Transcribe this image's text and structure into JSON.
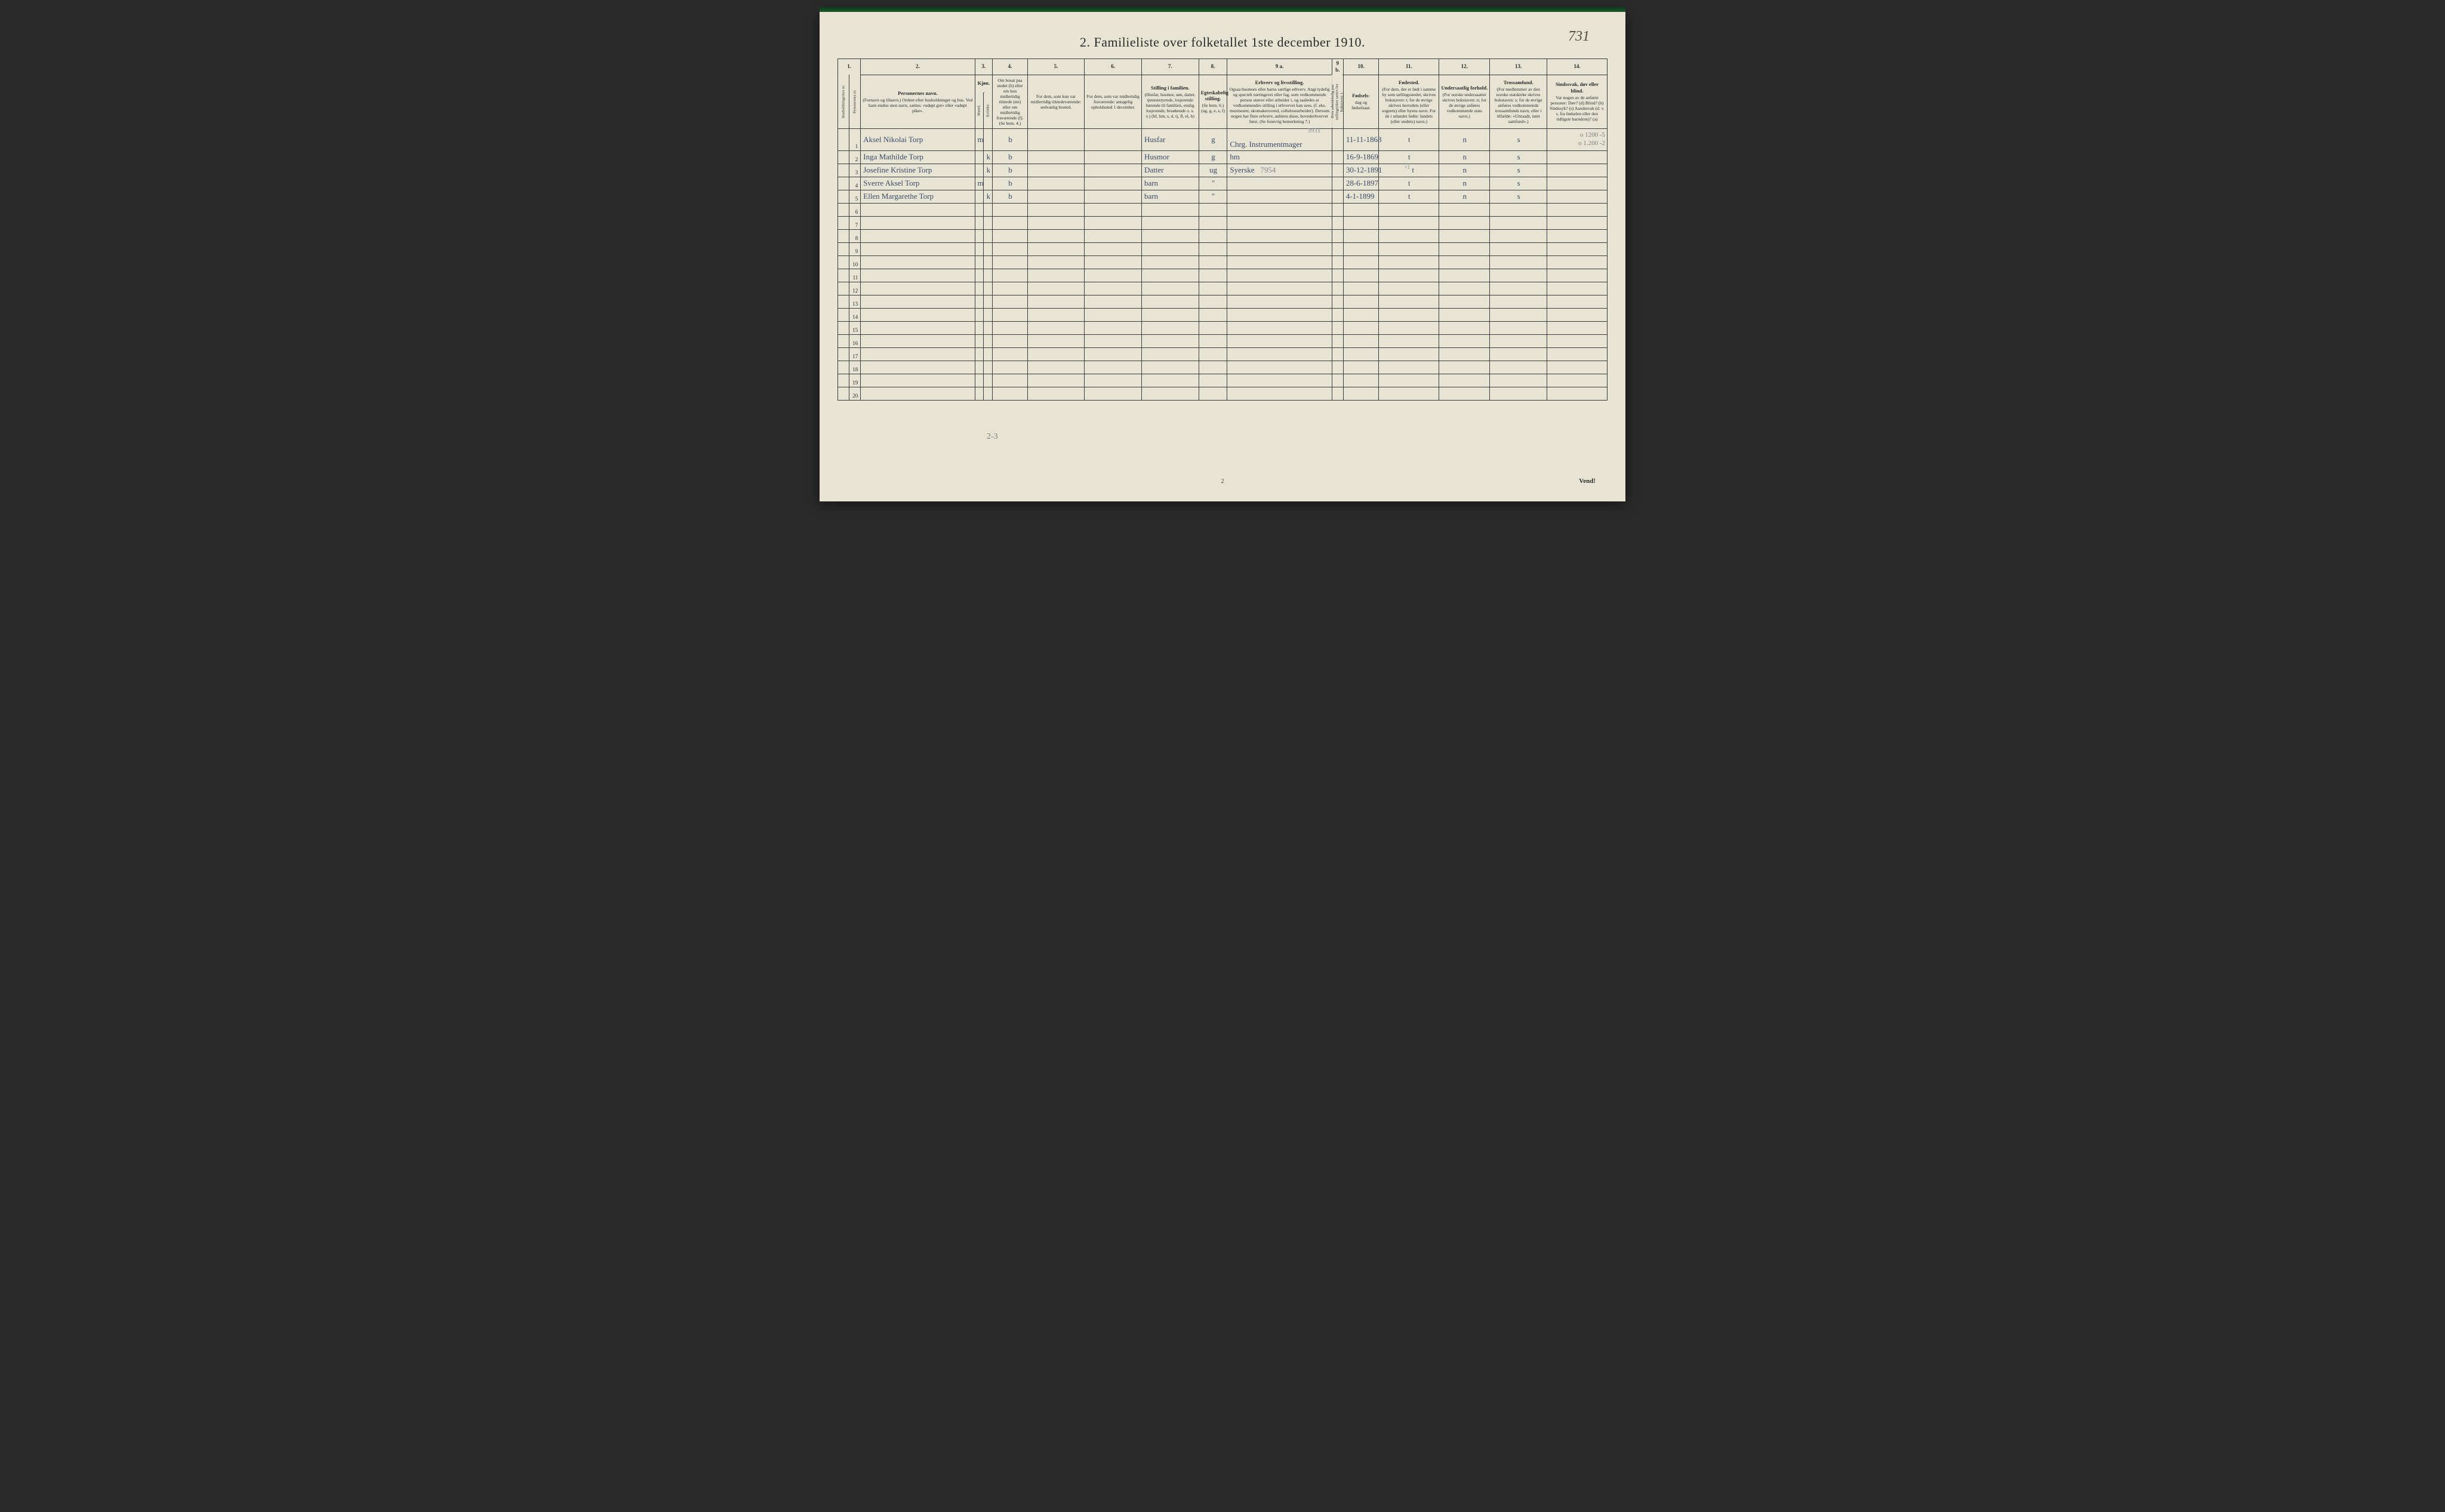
{
  "page": {
    "title": "2.  Familieliste over folketallet 1ste december 1910.",
    "topright_pagenum": "731",
    "footer_pagenum": "2",
    "vend": "Vend!",
    "tally": "2-3",
    "background_color": "#e8e4d4",
    "border_color": "#3a3a3a",
    "handwriting_color": "#3a4a6a",
    "faint_color": "#8a8a9a"
  },
  "annotations": {
    "margin_right_1": "o  1200 -5",
    "margin_right_2": "o  1.200 -2",
    "col9_faint": "3931",
    "col9_row3_extra": "7954",
    "col11_row3_mark": "+1"
  },
  "columns": {
    "c1": {
      "num": "1.",
      "h1": "Husholdningernes nr.",
      "h2": "Personernes nr."
    },
    "c2": {
      "num": "2.",
      "title": "Personernes navn.",
      "text": "(Fornavn og tilnavn.)\nOrdnet efter husholdninger og hus.\nVed barn endnu uten navn, sættes: «udøpt gut» eller «udøpt pike»."
    },
    "c3": {
      "num": "3.",
      "title": "Kjøn.",
      "m": "Mænd.",
      "k": "Kvinder.",
      "mk": "m.  k."
    },
    "c4": {
      "num": "4.",
      "text": "Om bosat paa stedet (b) eller om kun midlertidig tilstede (mt) eller om midlertidig fraværende (f). (Se bem. 4.)"
    },
    "c5": {
      "num": "5.",
      "text": "For dem, som kun var midlertidig tilstedeværende:\nsedvanlig bosted."
    },
    "c6": {
      "num": "6.",
      "text": "For dem, som var midlertidig fraværende:\nantagelig opholdssted 1 december."
    },
    "c7": {
      "num": "7.",
      "title": "Stilling i familien.",
      "text": "(Husfar, husmor, søn, datter, tjenestetyende, losjerende hørende til familien, enslig losjerende, besøkende o. s. v.)\n(hf, hm, s, d, tj, fl, el, b)"
    },
    "c8": {
      "num": "8.",
      "title": "Egteskabelig stilling.",
      "text": "(Se bem. 6.)\n(ug, g, e, s, f)"
    },
    "c9a": {
      "num": "9 a.",
      "title": "Erhverv og livsstilling.",
      "text": "Ogsaa husmors eller barns særlige erhverv. Angi tydelig og specielt næringsvei eller fag, som vedkommende person utøver eller arbeider i, og saaledes at vedkommendes stilling i erhvervet kan sees. (f. eks. murmester, skomakersvend, cellulosearbeider). Dersom nogen har flere erhverv, anføres disse, hovederhvervet først.\n(Se forøvrig bemerkning 7.)"
    },
    "c9b": {
      "num": "9 b.",
      "text": "Hvis arbeidsledig paa tællingstiden sættes her bokstaven: l."
    },
    "c10": {
      "num": "10.",
      "title": "Fødsels-",
      "text": "dag\nog\nfødselsaar."
    },
    "c11": {
      "num": "11.",
      "title": "Fødested.",
      "text": "(For dem, der er født i samme by som tællingsstedet, skrives bokstaven: t; for de øvrige skrives herredets (eller sognets) eller byens navn. For de i utlandet fødte: landets (eller stedets) navn.)"
    },
    "c12": {
      "num": "12.",
      "title": "Undersaatlig forhold.",
      "text": "(For norske undersaatter skrives bokstaven: n; for de øvrige anføres vedkommende stats navn.)"
    },
    "c13": {
      "num": "13.",
      "title": "Trossamfund.",
      "text": "(For medlemmer av den norske statskirke skrives bokstaven: s; for de øvrige anføres vedkommende trossamfunds navn, eller i tilfælde: «Uttraadt, intet samfund».)"
    },
    "c14": {
      "num": "14.",
      "title": "Sindssvak, døv eller blind.",
      "text": "Var nogen av de anførte personer:\nDøv?     (d)\nBlind?    (b)\nSindssyk? (s)\nAandssvak (d. v. s. fra fødselen eller den tidligste barndom)? (a)"
    }
  },
  "rows": [
    {
      "n": "1",
      "name": "Aksel Nikolai Torp",
      "sex": "m",
      "res": "b",
      "pos": "Husfar",
      "mar": "g",
      "occ": "Chrg. Instrumentmager",
      "dob": "11-11-1868",
      "birthplace": "t",
      "nat": "n",
      "rel": "s"
    },
    {
      "n": "2",
      "name": "Inga Mathilde Torp",
      "sex": "k",
      "res": "b",
      "pos": "Husmor",
      "mar": "g",
      "occ": "hm",
      "dob": "16-9-1869",
      "birthplace": "t",
      "nat": "n",
      "rel": "s"
    },
    {
      "n": "3",
      "name": "Josefine Kristine Torp",
      "sex": "k",
      "res": "b",
      "pos": "Datter",
      "mar": "ug",
      "occ": "Syerske",
      "dob": "30-12-1891",
      "birthplace": "t",
      "nat": "n",
      "rel": "s"
    },
    {
      "n": "4",
      "name": "Sverre Aksel Torp",
      "sex": "m",
      "res": "b",
      "pos": "barn",
      "mar": "\"",
      "occ": "",
      "dob": "28-6-1897",
      "birthplace": "t",
      "nat": "n",
      "rel": "s"
    },
    {
      "n": "5",
      "name": "Ellen Margarethe Torp",
      "sex": "k",
      "res": "b",
      "pos": "barn",
      "mar": "\"",
      "occ": "",
      "dob": "4-1-1899",
      "birthplace": "t",
      "nat": "n",
      "rel": "s"
    }
  ],
  "empty_rows": [
    "6",
    "7",
    "8",
    "9",
    "10",
    "11",
    "12",
    "13",
    "14",
    "15",
    "16",
    "17",
    "18",
    "19",
    "20"
  ]
}
